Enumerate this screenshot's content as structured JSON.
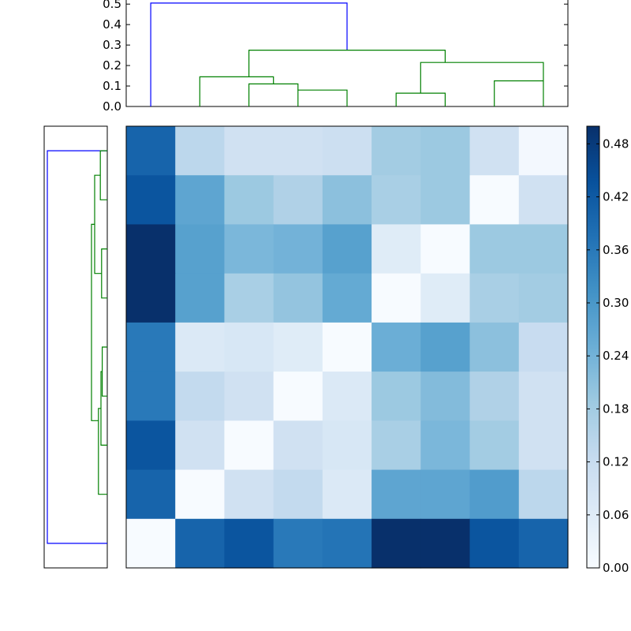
{
  "chart_data": {
    "type": "heatmap",
    "title": "",
    "xlabel": "",
    "ylabel": "",
    "colormap": "Blues",
    "color_min": "#f7fbff",
    "color_max": "#08306b",
    "dendrogram_colors": {
      "root": "#0000ff",
      "cluster": "#008000"
    },
    "top_dendrogram": {
      "ylim": [
        0,
        0.52
      ],
      "yticks": [
        "0.0",
        "0.1",
        "0.2",
        "0.3",
        "0.4",
        "0.5"
      ],
      "yvalues": [
        0,
        0.1,
        0.2,
        0.3,
        0.4,
        0.5
      ]
    },
    "colorbar": {
      "range": [
        0,
        0.5
      ],
      "ticks": [
        "0.00",
        "0.06",
        "0.12",
        "0.18",
        "0.24",
        "0.30",
        "0.36",
        "0.42",
        "0.48"
      ],
      "values": [
        0,
        0.06,
        0.12,
        0.18,
        0.24,
        0.3,
        0.36,
        0.42,
        0.48
      ]
    },
    "matrix": [
      [
        0.4,
        0.14,
        0.1,
        0.1,
        0.11,
        0.18,
        0.19,
        0.1,
        0.01
      ],
      [
        0.43,
        0.27,
        0.19,
        0.16,
        0.21,
        0.17,
        0.19,
        0.0,
        0.1
      ],
      [
        0.5,
        0.28,
        0.23,
        0.24,
        0.28,
        0.06,
        0.0,
        0.19,
        0.19
      ],
      [
        0.5,
        0.28,
        0.17,
        0.2,
        0.26,
        0.0,
        0.06,
        0.17,
        0.18
      ],
      [
        0.36,
        0.07,
        0.08,
        0.06,
        0.0,
        0.25,
        0.28,
        0.21,
        0.12
      ],
      [
        0.36,
        0.13,
        0.1,
        0.0,
        0.07,
        0.19,
        0.22,
        0.16,
        0.1
      ],
      [
        0.43,
        0.1,
        0.0,
        0.1,
        0.08,
        0.17,
        0.23,
        0.18,
        0.1
      ],
      [
        0.4,
        0.0,
        0.1,
        0.13,
        0.07,
        0.27,
        0.27,
        0.29,
        0.14
      ],
      [
        0.0,
        0.4,
        0.43,
        0.36,
        0.37,
        0.5,
        0.5,
        0.43,
        0.4
      ]
    ],
    "top_links": [
      {
        "x": [
          1,
          1,
          5,
          5
        ],
        "y": [
          0,
          0.505,
          0.505,
          0.275
        ],
        "color": "root"
      },
      {
        "x": [
          2,
          2,
          3.5,
          3.5
        ],
        "y": [
          0,
          0.145,
          0.145,
          0.11
        ],
        "color": "cluster"
      },
      {
        "x": [
          3,
          3,
          4,
          4
        ],
        "y": [
          0,
          0.11,
          0.11,
          0.08
        ],
        "color": "cluster"
      },
      {
        "x": [
          4,
          4,
          5,
          5
        ],
        "y": [
          0,
          0.08,
          0.08,
          0
        ],
        "color": "cluster"
      },
      {
        "x": [
          3,
          3,
          7,
          7
        ],
        "y": [
          0.145,
          0.275,
          0.275,
          0.215
        ],
        "color": "cluster"
      },
      {
        "x": [
          6,
          6,
          7,
          7
        ],
        "y": [
          0,
          0.065,
          0.065,
          0
        ],
        "color": "cluster"
      },
      {
        "x": [
          6.5,
          6.5,
          9,
          9
        ],
        "y": [
          0.065,
          0.215,
          0.215,
          0.125
        ],
        "color": "cluster"
      },
      {
        "x": [
          8,
          8,
          9,
          9
        ],
        "y": [
          0,
          0.125,
          0.125,
          0
        ],
        "color": "cluster"
      }
    ],
    "left_links": [
      {
        "d": [
          0,
          0.475,
          0.475,
          0
        ],
        "r": [
          1,
          1,
          9,
          9
        ],
        "color": "root"
      },
      {
        "d": [
          0,
          0.055,
          0.055,
          0
        ],
        "r": [
          1,
          1,
          2,
          2
        ],
        "color": "cluster"
      },
      {
        "d": [
          0.055,
          0.1,
          0.1,
          0.045
        ],
        "r": [
          1.5,
          1.5,
          3.5,
          3.5
        ],
        "color": "cluster"
      },
      {
        "d": [
          0,
          0.045,
          0.045,
          0
        ],
        "r": [
          3,
          3,
          4,
          4
        ],
        "color": "cluster"
      },
      {
        "d": [
          0.1,
          0.125,
          0.125,
          0.07
        ],
        "r": [
          2.5,
          2.5,
          6.5,
          6.5
        ],
        "color": "cluster"
      },
      {
        "d": [
          0,
          0.04,
          0.04,
          0
        ],
        "r": [
          5,
          5,
          6,
          6
        ],
        "color": "cluster"
      },
      {
        "d": [
          0.04,
          0.05,
          0.05,
          0
        ],
        "r": [
          5.5,
          5.5,
          7,
          7
        ],
        "color": "cluster"
      },
      {
        "d": [
          0.05,
          0.07,
          0.07,
          0
        ],
        "r": [
          6.25,
          6.25,
          8,
          8
        ],
        "color": "cluster"
      }
    ],
    "left_dendrogram": {
      "dmax": 0.5
    }
  }
}
